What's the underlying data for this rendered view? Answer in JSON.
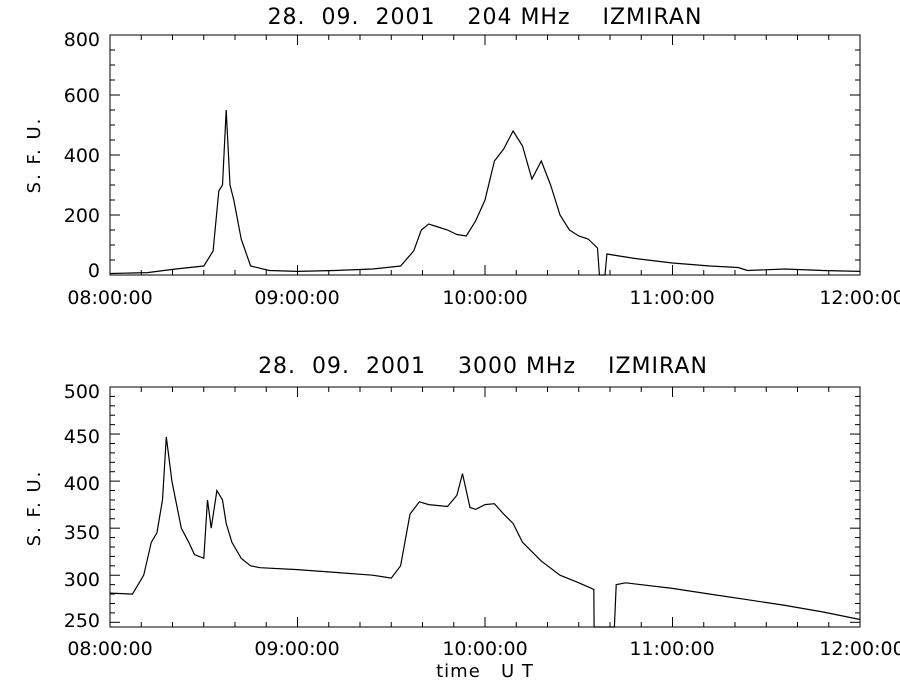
{
  "panels": [
    {
      "title": "28.  09.  2001    204 MHz    IZMIRAN",
      "ylabel": "S. F. U.",
      "yticks": [
        "0",
        "200",
        "400",
        "600",
        "800"
      ],
      "xticks": [
        "08:00:00",
        "09:00:00",
        "10:00:00",
        "11:00:00",
        "12:00:00"
      ]
    },
    {
      "title": "28.  09.  2001    3000 MHz    IZMIRAN",
      "ylabel": "S. F. U.",
      "yticks": [
        "250",
        "300",
        "350",
        "400",
        "450",
        "500"
      ],
      "xticks": [
        "08:00:00",
        "09:00:00",
        "10:00:00",
        "11:00:00",
        "12:00:00"
      ],
      "xlabel": "time   U T"
    }
  ],
  "chart_data": [
    {
      "type": "line",
      "title": "28.  09.  2001    204 MHz    IZMIRAN",
      "xlabel": "",
      "ylabel": "S. F. U.",
      "xunit": "hours UT",
      "xlim": [
        8,
        12
      ],
      "ylim": [
        0,
        800
      ],
      "grid": false,
      "series": [
        {
          "color": "#000000",
          "x": [
            8.0,
            8.2,
            8.35,
            8.5,
            8.55,
            8.58,
            8.6,
            8.62,
            8.64,
            8.66,
            8.7,
            8.75,
            8.85,
            9.0,
            9.2,
            9.4,
            9.55,
            9.62,
            9.66,
            9.7,
            9.75,
            9.8,
            9.85,
            9.9,
            9.95,
            10.0,
            10.05,
            10.1,
            10.15,
            10.2,
            10.25,
            10.3,
            10.35,
            10.4,
            10.45,
            10.5,
            10.55,
            10.6,
            10.61,
            10.64,
            10.65,
            10.7,
            10.8,
            11.0,
            11.2,
            11.35,
            11.4,
            11.6,
            11.8,
            12.0
          ],
          "values": [
            5,
            8,
            20,
            30,
            80,
            280,
            300,
            550,
            300,
            250,
            120,
            30,
            15,
            12,
            15,
            20,
            30,
            80,
            150,
            170,
            160,
            150,
            135,
            130,
            180,
            250,
            380,
            420,
            480,
            430,
            320,
            380,
            300,
            200,
            150,
            130,
            120,
            90,
            0,
            0,
            70,
            65,
            55,
            40,
            30,
            25,
            15,
            20,
            15,
            12
          ]
        }
      ]
    },
    {
      "type": "line",
      "title": "28.  09.  2001    3000 MHz    IZMIRAN",
      "xlabel": "time   U T",
      "ylabel": "S. F. U.",
      "xunit": "hours UT",
      "xlim": [
        8,
        12
      ],
      "ylim": [
        245,
        500
      ],
      "grid": false,
      "series": [
        {
          "color": "#000000",
          "x": [
            8.0,
            8.12,
            8.18,
            8.22,
            8.25,
            8.28,
            8.3,
            8.33,
            8.38,
            8.42,
            8.45,
            8.5,
            8.52,
            8.54,
            8.57,
            8.6,
            8.62,
            8.65,
            8.7,
            8.75,
            8.8,
            9.0,
            9.2,
            9.4,
            9.5,
            9.55,
            9.6,
            9.65,
            9.7,
            9.8,
            9.85,
            9.88,
            9.92,
            9.95,
            10.0,
            10.05,
            10.1,
            10.15,
            10.2,
            10.3,
            10.4,
            10.5,
            10.58,
            10.582,
            10.69,
            10.7,
            10.75,
            11.0,
            11.2,
            11.4,
            11.6,
            11.8,
            12.0
          ],
          "values": [
            281,
            280,
            300,
            335,
            345,
            380,
            447,
            400,
            350,
            335,
            322,
            318,
            380,
            350,
            390,
            380,
            355,
            335,
            318,
            310,
            308,
            306,
            303,
            300,
            297,
            310,
            365,
            378,
            375,
            373,
            385,
            408,
            372,
            370,
            375,
            376,
            365,
            355,
            335,
            315,
            300,
            292,
            285,
            245,
            245,
            290,
            292,
            286,
            280,
            274,
            268,
            261,
            253
          ]
        }
      ]
    }
  ]
}
